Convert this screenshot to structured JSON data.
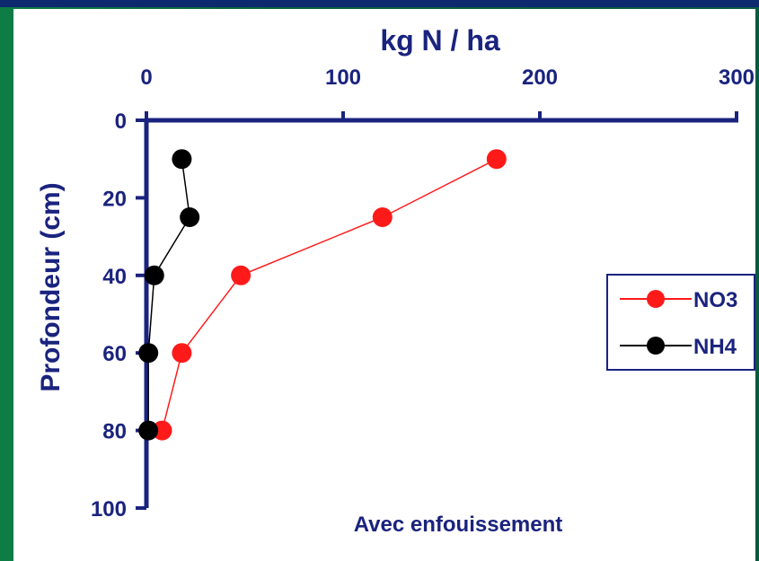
{
  "chart_data": {
    "type": "scatter",
    "title": "",
    "subtitle": "Avec enfouissement",
    "xlabel": "kg N / ha",
    "ylabel": "Profondeur (cm)",
    "xlim": [
      0,
      300
    ],
    "ylim": [
      0,
      100
    ],
    "y_inverted": true,
    "x_axis_position": "top",
    "x_ticks": [
      "0",
      "100",
      "200",
      "300"
    ],
    "y_ticks": [
      "0",
      "20",
      "40",
      "60",
      "80",
      "100"
    ],
    "legend_position": "right",
    "grid": false,
    "series": [
      {
        "name": "NO3",
        "color": "#ff1a1a",
        "x": [
          178,
          120,
          48,
          18,
          8
        ],
        "y": [
          10,
          25,
          40,
          60,
          80
        ]
      },
      {
        "name": "NH4",
        "color": "#000000",
        "x": [
          18,
          22,
          4,
          1,
          1
        ],
        "y": [
          10,
          25,
          40,
          60,
          80
        ]
      }
    ]
  },
  "colors": {
    "axis": "#1a237e",
    "background_green": "#0b6a3c",
    "top_bar_blue": "#0d2a6e"
  }
}
